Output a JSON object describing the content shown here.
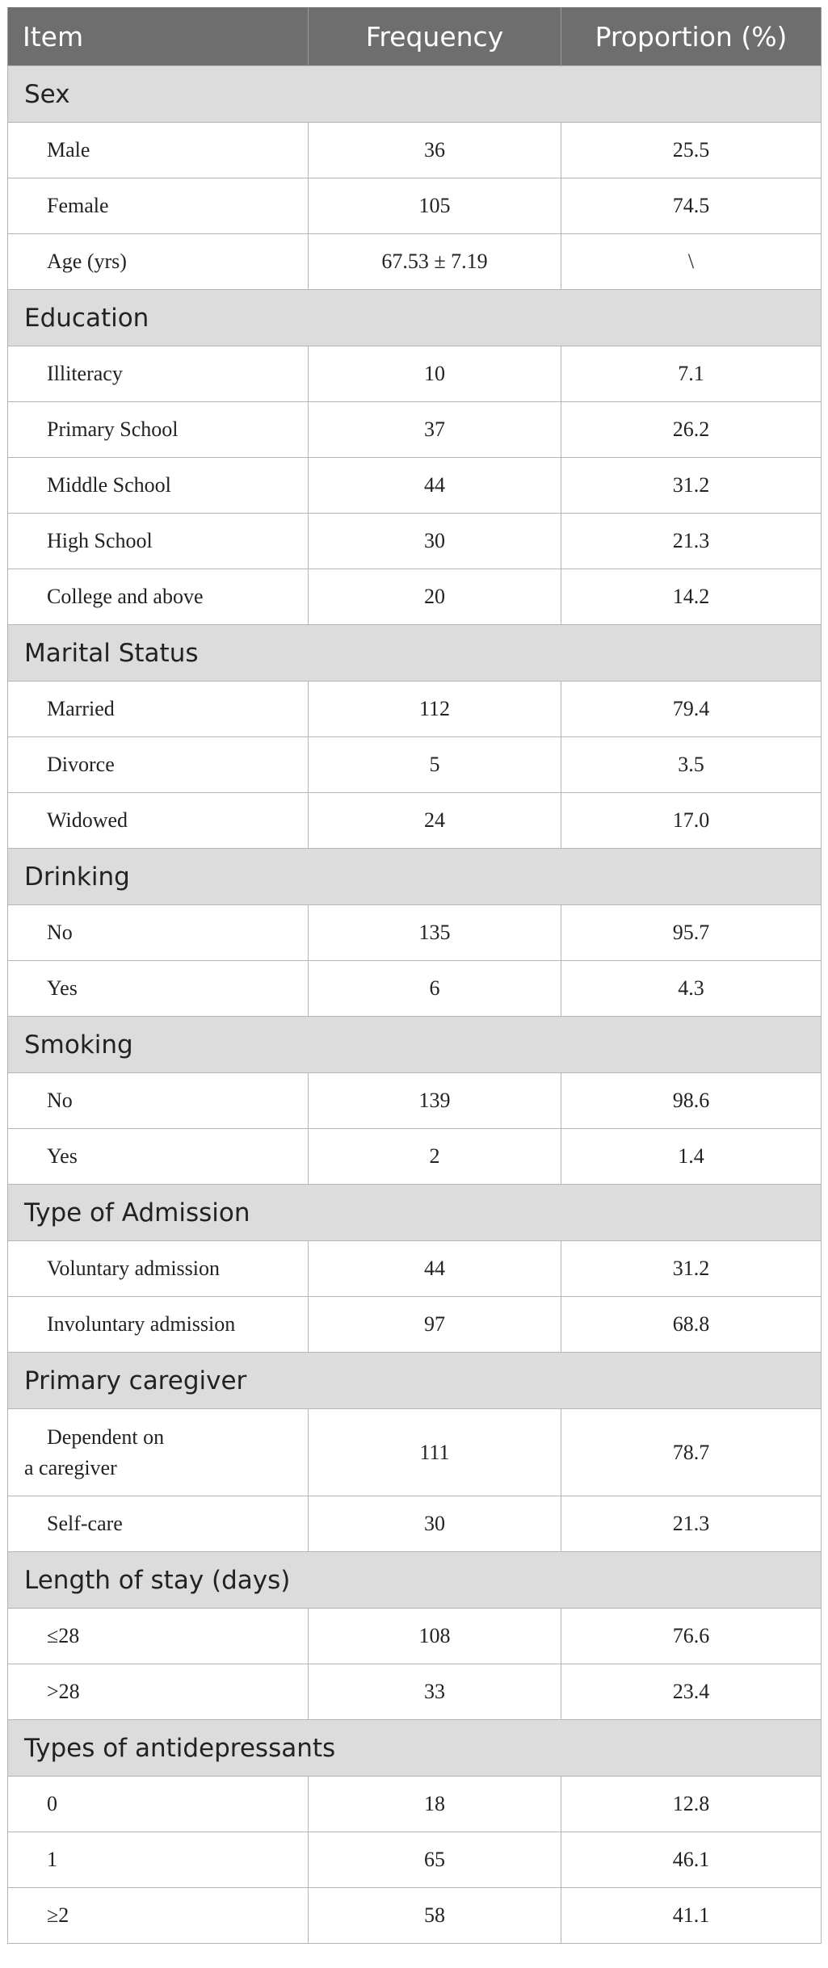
{
  "table": {
    "headers": [
      "Item",
      "Frequency",
      "Proportion (%)"
    ],
    "groups": [
      {
        "label": "Sex",
        "rows": [
          {
            "item": "Male",
            "frequency": "36",
            "proportion": "25.5"
          },
          {
            "item": "Female",
            "frequency": "105",
            "proportion": "74.5"
          },
          {
            "item": "Age (yrs)",
            "frequency": "67.53 ± 7.19",
            "proportion": "\\"
          }
        ]
      },
      {
        "label": "Education",
        "rows": [
          {
            "item": "Illiteracy",
            "frequency": "10",
            "proportion": "7.1"
          },
          {
            "item": "Primary School",
            "frequency": "37",
            "proportion": "26.2"
          },
          {
            "item": "Middle School",
            "frequency": "44",
            "proportion": "31.2"
          },
          {
            "item": "High School",
            "frequency": "30",
            "proportion": "21.3"
          },
          {
            "item": "College and above",
            "frequency": "20",
            "proportion": "14.2"
          }
        ]
      },
      {
        "label": "Marital Status",
        "rows": [
          {
            "item": "Married",
            "frequency": "112",
            "proportion": "79.4"
          },
          {
            "item": "Divorce",
            "frequency": "5",
            "proportion": "3.5"
          },
          {
            "item": "Widowed",
            "frequency": "24",
            "proportion": "17.0"
          }
        ]
      },
      {
        "label": "Drinking",
        "rows": [
          {
            "item": "No",
            "frequency": "135",
            "proportion": "95.7"
          },
          {
            "item": "Yes",
            "frequency": "6",
            "proportion": "4.3"
          }
        ]
      },
      {
        "label": "Smoking",
        "rows": [
          {
            "item": "No",
            "frequency": "139",
            "proportion": "98.6"
          },
          {
            "item": "Yes",
            "frequency": "2",
            "proportion": "1.4"
          }
        ]
      },
      {
        "label": "Type of Admission",
        "rows": [
          {
            "item": "Voluntary admission",
            "frequency": "44",
            "proportion": "31.2"
          },
          {
            "item": "Involuntary admission",
            "frequency": "97",
            "proportion": "68.8"
          }
        ]
      },
      {
        "label": "Primary caregiver",
        "rows": [
          {
            "item": "Dependent on a caregiver",
            "item_line1": "Dependent on",
            "item_line2": "a caregiver",
            "frequency": "111",
            "proportion": "78.7"
          },
          {
            "item": "Self-care",
            "frequency": "30",
            "proportion": "21.3"
          }
        ]
      },
      {
        "label": "Length of stay (days)",
        "rows": [
          {
            "item": "≤28",
            "frequency": "108",
            "proportion": "76.6"
          },
          {
            "item": ">28",
            "frequency": "33",
            "proportion": "23.4"
          }
        ]
      },
      {
        "label": "Types of antidepressants",
        "rows": [
          {
            "item": "0",
            "frequency": "18",
            "proportion": "12.8"
          },
          {
            "item": "1",
            "frequency": "65",
            "proportion": "46.1"
          },
          {
            "item": "≥2",
            "frequency": "58",
            "proportion": "41.1"
          }
        ]
      }
    ]
  }
}
